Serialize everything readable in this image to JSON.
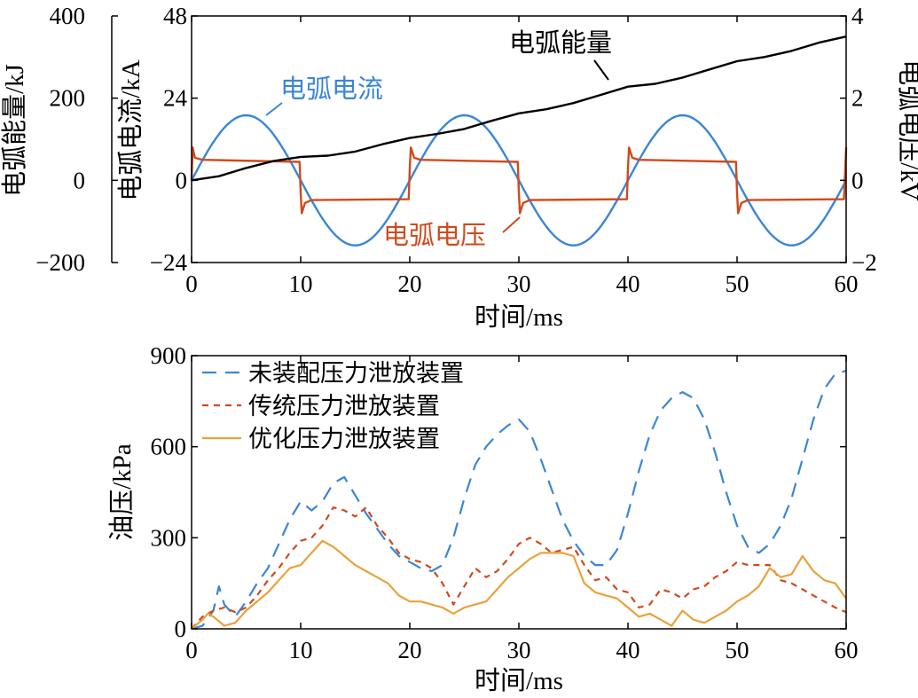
{
  "chart_data": [
    {
      "type": "line",
      "xlabel": "时间/ms",
      "xlim": [
        0,
        60
      ],
      "x_ticks": [
        0,
        10,
        20,
        30,
        40,
        50,
        60
      ],
      "axes": {
        "energy": {
          "label": "电弧能量/kJ",
          "lim": [
            -200,
            400
          ],
          "ticks": [
            "−200",
            "0",
            "200",
            "400"
          ]
        },
        "current": {
          "label": "电弧电流/kA",
          "lim": [
            -24,
            48
          ],
          "ticks": [
            "−24",
            "0",
            "24",
            "48"
          ]
        },
        "voltage": {
          "label": "电弧电压/kV",
          "lim": [
            -2,
            4
          ],
          "ticks": [
            "−2",
            "0",
            "2",
            "4"
          ]
        }
      },
      "grid": false,
      "series": [
        {
          "name": "电弧电流",
          "axis": "current",
          "color": "#3a86d6",
          "style": "solid",
          "x": [
            0,
            2.5,
            5,
            7.5,
            10,
            12.5,
            15,
            17.5,
            20,
            22.5,
            25,
            27.5,
            30,
            32.5,
            35,
            37.5,
            40,
            42.5,
            45,
            47.5,
            50,
            52.5,
            55,
            57.5,
            60
          ],
          "y": [
            0,
            13.4,
            19,
            13.4,
            0,
            -13.4,
            -19,
            -13.4,
            0,
            13.4,
            19,
            13.4,
            0,
            -13.4,
            -19,
            -13.4,
            0,
            13.4,
            19,
            13.4,
            0,
            -13.4,
            -19,
            -13.4,
            0
          ]
        },
        {
          "name": "电弧电压",
          "axis": "voltage",
          "color": "#d04a1c",
          "style": "solid",
          "x": [
            0,
            0.1,
            0.3,
            1,
            9.9,
            10,
            10.1,
            10.4,
            11,
            19.9,
            20,
            20.1,
            20.4,
            21,
            29.9,
            30,
            30.1,
            30.4,
            31,
            39.9,
            40,
            40.1,
            40.4,
            41,
            49.9,
            50,
            50.1,
            50.4,
            51,
            59.8,
            60
          ],
          "y": [
            0,
            0.8,
            0.55,
            0.5,
            0.45,
            -0.3,
            -0.8,
            -0.55,
            -0.48,
            -0.46,
            0.3,
            0.8,
            0.55,
            0.5,
            0.45,
            -0.3,
            -0.8,
            -0.55,
            -0.48,
            -0.46,
            0.3,
            0.8,
            0.55,
            0.5,
            0.45,
            -0.3,
            -0.8,
            -0.55,
            -0.48,
            -0.46,
            0.8
          ]
        },
        {
          "name": "电弧能量",
          "axis": "energy",
          "color": "#000000",
          "style": "solid",
          "x": [
            0,
            2.5,
            5,
            7.5,
            10,
            12.5,
            15,
            17.5,
            20,
            22.5,
            25,
            27.5,
            30,
            32.5,
            35,
            37.5,
            40,
            42.5,
            45,
            47.5,
            50,
            52.5,
            55,
            57.5,
            60
          ],
          "y": [
            0,
            10,
            30,
            47,
            57,
            60,
            70,
            88,
            103,
            113,
            125,
            145,
            163,
            173,
            188,
            208,
            228,
            235,
            250,
            270,
            290,
            300,
            315,
            335,
            350
          ]
        }
      ]
    },
    {
      "type": "line",
      "xlabel": "时间/ms",
      "ylabel": "油压/kPa",
      "xlim": [
        0,
        60
      ],
      "ylim": [
        0,
        900
      ],
      "x_ticks": [
        0,
        10,
        20,
        30,
        40,
        50,
        60
      ],
      "y_ticks": [
        0,
        300,
        600,
        900
      ],
      "legend_position": "top-left",
      "grid": false,
      "series": [
        {
          "name": "未装配压力泄放装置",
          "color": "#3a86d6",
          "style": "long-dash",
          "x": [
            0,
            1,
            2,
            2.5,
            3,
            4,
            5,
            6,
            7,
            8,
            9,
            10,
            11,
            12,
            13,
            14,
            15,
            16,
            17,
            18,
            19,
            20,
            21,
            22,
            23,
            24,
            25,
            26,
            27,
            28,
            29,
            30,
            31,
            32,
            33,
            34,
            35,
            36,
            37,
            38,
            39,
            40,
            41,
            42,
            43,
            44,
            45,
            46,
            47,
            48,
            49,
            50,
            51,
            52,
            53,
            54,
            55,
            56,
            57,
            58,
            59,
            60
          ],
          "y": [
            0,
            10,
            60,
            140,
            80,
            40,
            90,
            150,
            200,
            280,
            360,
            420,
            390,
            420,
            480,
            500,
            440,
            380,
            330,
            280,
            240,
            220,
            200,
            190,
            210,
            300,
            430,
            540,
            600,
            640,
            670,
            690,
            650,
            560,
            460,
            360,
            290,
            240,
            210,
            210,
            260,
            380,
            520,
            640,
            720,
            760,
            780,
            760,
            690,
            580,
            450,
            340,
            270,
            250,
            280,
            340,
            430,
            560,
            690,
            790,
            840,
            850
          ]
        },
        {
          "name": "传统压力泄放装置",
          "color": "#d04a1c",
          "style": "short-dash",
          "x": [
            0,
            1,
            2,
            3,
            4,
            5,
            6,
            7,
            8,
            9,
            10,
            11,
            12,
            13,
            14,
            15,
            16,
            17,
            18,
            19,
            20,
            21,
            22,
            23,
            24,
            25,
            26,
            27,
            28,
            29,
            30,
            31,
            32,
            33,
            34,
            35,
            36,
            37,
            38,
            39,
            40,
            41,
            42,
            43,
            44,
            45,
            46,
            47,
            48,
            49,
            50,
            51,
            52,
            53,
            54,
            55,
            56,
            57,
            58,
            59,
            60
          ],
          "y": [
            0,
            40,
            60,
            70,
            55,
            70,
            110,
            160,
            200,
            250,
            290,
            300,
            340,
            400,
            390,
            370,
            400,
            340,
            300,
            250,
            230,
            220,
            200,
            150,
            80,
            140,
            200,
            170,
            190,
            230,
            280,
            300,
            280,
            250,
            260,
            270,
            210,
            160,
            170,
            130,
            120,
            70,
            80,
            130,
            120,
            100,
            130,
            140,
            170,
            190,
            220,
            210,
            210,
            210,
            160,
            150,
            130,
            110,
            90,
            70,
            55
          ]
        },
        {
          "name": "优化压力泄放装置",
          "color": "#e9a23b",
          "style": "solid",
          "x": [
            0,
            1,
            1.5,
            2,
            3,
            4,
            5,
            6,
            7,
            8,
            9,
            10,
            11,
            12,
            13,
            14,
            15,
            16,
            17,
            18,
            19,
            20,
            21,
            22,
            23,
            24,
            25,
            26,
            27,
            28,
            29,
            30,
            31,
            32,
            33,
            34,
            35,
            36,
            37,
            38,
            39,
            40,
            41,
            42,
            43,
            44,
            45,
            46,
            47,
            48,
            49,
            50,
            51,
            52,
            53,
            54,
            55,
            56,
            57,
            58,
            59,
            60
          ],
          "y": [
            0,
            30,
            50,
            40,
            10,
            20,
            60,
            90,
            120,
            160,
            200,
            210,
            250,
            290,
            270,
            240,
            210,
            190,
            170,
            150,
            110,
            90,
            90,
            80,
            70,
            50,
            70,
            80,
            90,
            130,
            170,
            200,
            230,
            250,
            250,
            250,
            240,
            150,
            120,
            110,
            100,
            70,
            40,
            50,
            30,
            10,
            60,
            30,
            20,
            40,
            60,
            90,
            110,
            140,
            200,
            170,
            180,
            240,
            190,
            160,
            150,
            100
          ]
        }
      ]
    }
  ]
}
